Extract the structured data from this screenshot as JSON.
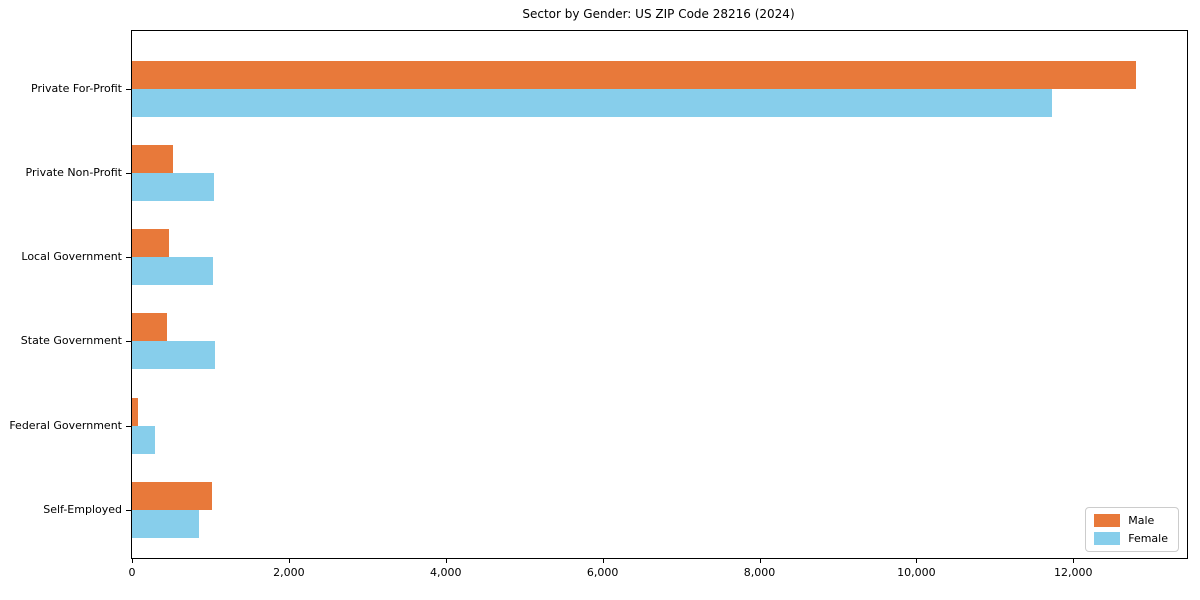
{
  "chart_data": {
    "type": "bar",
    "orientation": "horizontal",
    "title": "Sector by Gender: US ZIP Code 28216 (2024)",
    "categories": [
      "Private For-Profit",
      "Private Non-Profit",
      "Local Government",
      "State Government",
      "Federal Government",
      "Self-Employed"
    ],
    "series": [
      {
        "name": "Male",
        "color": "#e8793a",
        "values": [
          12800,
          520,
          470,
          450,
          80,
          1020
        ]
      },
      {
        "name": "Female",
        "color": "#87ceeb",
        "values": [
          11730,
          1040,
          1030,
          1060,
          290,
          850
        ]
      }
    ],
    "xlabel": "",
    "ylabel": "",
    "xlim": [
      0,
      13450
    ],
    "xticks": [
      0,
      2000,
      4000,
      6000,
      8000,
      10000,
      12000
    ],
    "xtick_labels": [
      "0",
      "2,000",
      "4,000",
      "6,000",
      "8,000",
      "10,000",
      "12,000"
    ],
    "legend_position": "lower right",
    "grid": false,
    "axis_color": "#000000",
    "background": "#ffffff"
  }
}
